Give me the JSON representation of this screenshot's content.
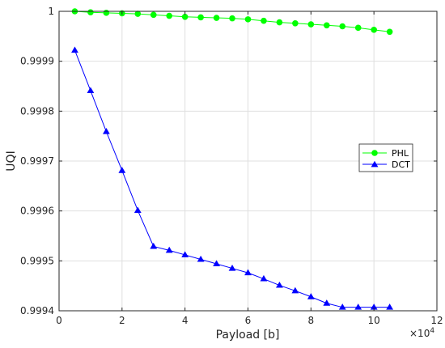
{
  "chart_data": {
    "type": "line",
    "title": "",
    "xlabel": "Payload [b]",
    "ylabel": "UQI",
    "x_exponent_label": "×10",
    "x_exponent_power": "4",
    "x_scale_factor": 10000,
    "xlim": [
      0,
      120000
    ],
    "ylim": [
      0.9994,
      1
    ],
    "x_ticks": [
      0,
      20000,
      40000,
      60000,
      80000,
      100000,
      120000
    ],
    "x_tick_labels": [
      "0",
      "2",
      "4",
      "6",
      "8",
      "10",
      "12"
    ],
    "y_ticks": [
      0.9994,
      0.9995,
      0.9996,
      0.9997,
      0.9998,
      0.9999,
      1
    ],
    "y_tick_labels": [
      "0.9994",
      "0.9995",
      "0.9996",
      "0.9997",
      "0.9998",
      "0.9999",
      "1"
    ],
    "grid": true,
    "legend_position": "right",
    "x": [
      5000,
      10000,
      15000,
      20000,
      25000,
      30000,
      35000,
      40000,
      45000,
      50000,
      55000,
      60000,
      65000,
      70000,
      75000,
      80000,
      85000,
      90000,
      95000,
      100000,
      105000
    ],
    "series": [
      {
        "name": "PHL",
        "color": "#00ff00",
        "marker": "circle",
        "values": [
          1.0,
          0.999998,
          0.999997,
          0.999996,
          0.999995,
          0.999993,
          0.999991,
          0.999989,
          0.999988,
          0.999987,
          0.999986,
          0.999984,
          0.999981,
          0.999978,
          0.999976,
          0.999974,
          0.999972,
          0.99997,
          0.999967,
          0.999963,
          0.999959
        ]
      },
      {
        "name": "DCT",
        "color": "#0000ff",
        "marker": "triangle",
        "values": [
          0.999922,
          0.999841,
          0.999759,
          0.999681,
          0.999601,
          0.999529,
          0.999521,
          0.999512,
          0.999503,
          0.999494,
          0.999485,
          0.999476,
          0.999464,
          0.999451,
          0.99944,
          0.999428,
          0.999415,
          0.999407,
          0.999407,
          0.999407,
          0.999407
        ]
      }
    ]
  }
}
